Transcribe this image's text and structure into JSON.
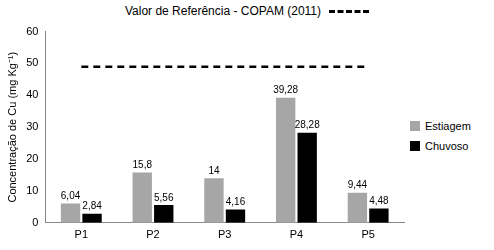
{
  "chart_data": {
    "type": "bar",
    "y_label": "Concentração de Cu (mg Kg⁻¹)",
    "categories": [
      "P1",
      "P2",
      "P3",
      "P4",
      "P5"
    ],
    "series": [
      {
        "name": "Estiagem",
        "color": "#a6a6a6",
        "values": [
          6.04,
          15.8,
          14,
          39.28,
          9.44
        ],
        "value_labels": [
          "6,04",
          "15,8",
          "14",
          "39,28",
          "9,44"
        ]
      },
      {
        "name": "Chuvoso",
        "color": "#000000",
        "values": [
          2.84,
          5.56,
          4.16,
          28.28,
          4.48
        ],
        "value_labels": [
          "2,84",
          "5,56",
          "4,16",
          "28,28",
          "4,48"
        ]
      },
      {
        "name": "Valor de Referência - COPAM (2011)",
        "type": "line",
        "line_style": "dashed",
        "color": "#000000",
        "values": [
          49,
          49,
          49,
          49,
          49
        ]
      }
    ],
    "ylim": [
      0,
      60
    ],
    "yticks": [
      0,
      10,
      20,
      30,
      40,
      50,
      60
    ],
    "grid": false,
    "legend": "right",
    "data_labels": true
  }
}
